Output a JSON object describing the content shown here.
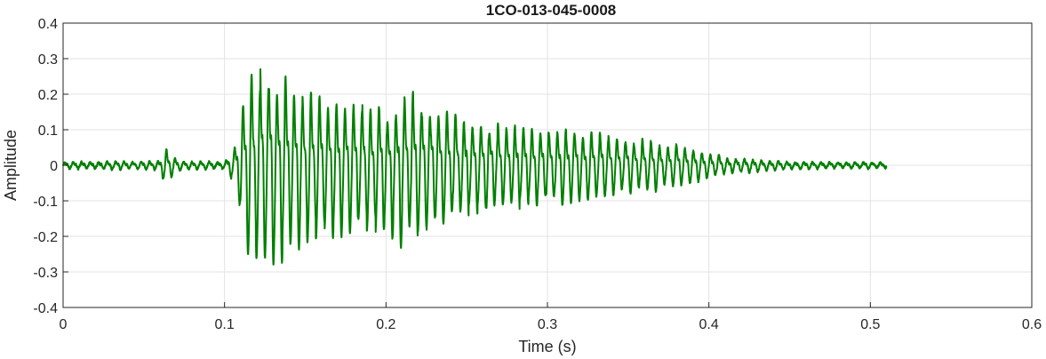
{
  "chart_data": {
    "type": "line",
    "title": "1CO-013-045-0008",
    "xlabel": "Time (s)",
    "ylabel": "Amplitude",
    "xlim": [
      0,
      0.6
    ],
    "ylim": [
      -0.4,
      0.4
    ],
    "xticks": [
      0,
      0.1,
      0.2,
      0.3,
      0.4,
      0.5,
      0.6
    ],
    "xtick_labels": [
      "0",
      "0.1",
      "0.2",
      "0.3",
      "0.4",
      "0.5",
      "0.6"
    ],
    "yticks": [
      -0.4,
      -0.3,
      -0.2,
      -0.1,
      0,
      0.1,
      0.2,
      0.3,
      0.4
    ],
    "ytick_labels": [
      "-0.4",
      "-0.3",
      "-0.2",
      "-0.1",
      "0",
      "0.1",
      "0.2",
      "0.3",
      "0.4"
    ],
    "grid": true,
    "series": [
      {
        "color": "#008000",
        "x_range": [
          0,
          0.51
        ],
        "envelope": [
          [
            0.0,
            0.01
          ],
          [
            0.06,
            0.012
          ],
          [
            0.063,
            0.06
          ],
          [
            0.068,
            0.03
          ],
          [
            0.075,
            0.01
          ],
          [
            0.1,
            0.01
          ],
          [
            0.106,
            0.05
          ],
          [
            0.112,
            0.2
          ],
          [
            0.12,
            0.3
          ],
          [
            0.125,
            0.31
          ],
          [
            0.135,
            0.26
          ],
          [
            0.15,
            0.21
          ],
          [
            0.17,
            0.2
          ],
          [
            0.2,
            0.17
          ],
          [
            0.212,
            0.23
          ],
          [
            0.25,
            0.14
          ],
          [
            0.3,
            0.11
          ],
          [
            0.33,
            0.1
          ],
          [
            0.35,
            0.08
          ],
          [
            0.38,
            0.06
          ],
          [
            0.41,
            0.025
          ],
          [
            0.45,
            0.01
          ],
          [
            0.51,
            0.008
          ]
        ],
        "base_frequency_hz": 190
      }
    ]
  }
}
